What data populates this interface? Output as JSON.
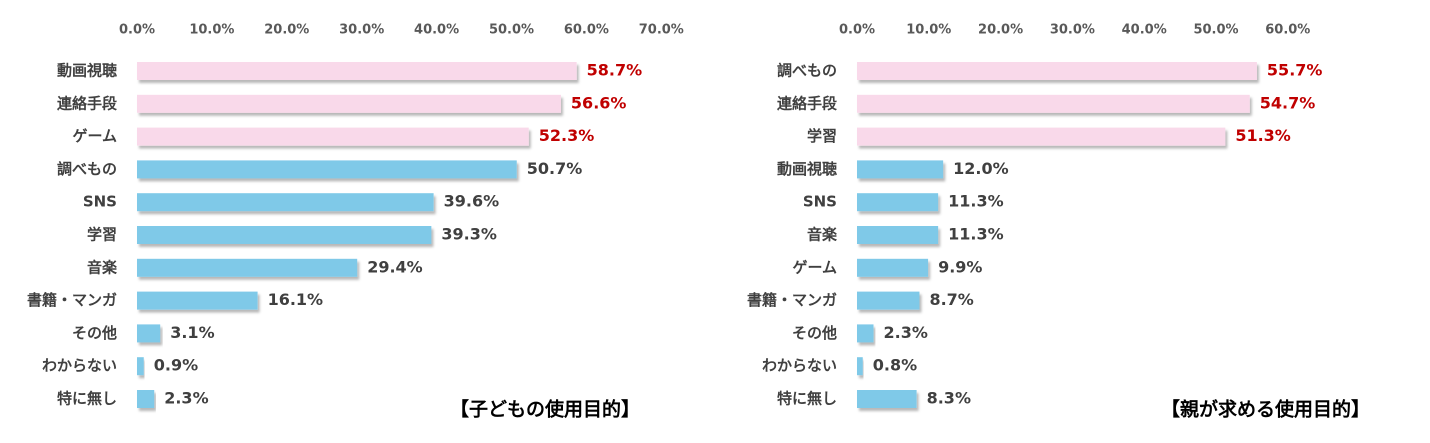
{
  "colors": {
    "highlight_bar": "#f9d9ea",
    "normal_bar": "#7fc9e8",
    "highlight_value": "#c00000",
    "normal_value": "#404040",
    "axis_text": "#595959"
  },
  "chart_data": [
    {
      "type": "bar",
      "orientation": "horizontal",
      "title": "【子どもの使用目的】",
      "xlim": [
        0,
        70
      ],
      "ticks": [
        "0.0%",
        "10.0%",
        "20.0%",
        "30.0%",
        "40.0%",
        "50.0%",
        "60.0%",
        "70.0%"
      ],
      "categories": [
        "動画視聴",
        "連絡手段",
        "ゲーム",
        "調べもの",
        "SNS",
        "学習",
        "音楽",
        "書籍・マンガ",
        "その他",
        "わからない",
        "特に無し"
      ],
      "values": [
        58.7,
        56.6,
        52.3,
        50.7,
        39.6,
        39.3,
        29.4,
        16.1,
        3.1,
        0.9,
        2.3
      ],
      "value_labels": [
        "58.7%",
        "56.6%",
        "52.3%",
        "50.7%",
        "39.6%",
        "39.3%",
        "29.4%",
        "16.1%",
        "3.1%",
        "0.9%",
        "2.3%"
      ],
      "highlight_top": 3,
      "grid": false
    },
    {
      "type": "bar",
      "orientation": "horizontal",
      "title": "【親が求める使用目的】",
      "xlim": [
        0,
        60
      ],
      "ticks": [
        "0.0%",
        "10.0%",
        "20.0%",
        "30.0%",
        "40.0%",
        "50.0%",
        "60.0%"
      ],
      "categories": [
        "調べもの",
        "連絡手段",
        "学習",
        "動画視聴",
        "SNS",
        "音楽",
        "ゲーム",
        "書籍・マンガ",
        "その他",
        "わからない",
        "特に無し"
      ],
      "values": [
        55.7,
        54.7,
        51.3,
        12.0,
        11.3,
        11.3,
        9.9,
        8.7,
        2.3,
        0.8,
        8.3
      ],
      "value_labels": [
        "55.7%",
        "54.7%",
        "51.3%",
        "12.0%",
        "11.3%",
        "11.3%",
        "9.9%",
        "8.7%",
        "2.3%",
        "0.8%",
        "8.3%"
      ],
      "highlight_top": 3,
      "grid": false
    }
  ]
}
